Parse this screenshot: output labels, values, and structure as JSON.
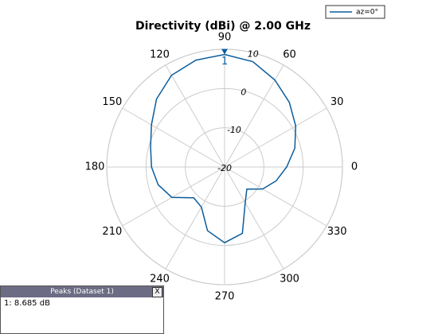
{
  "chart_data": {
    "type": "polar",
    "title": "Directivity (dBi) @ 2.00 GHz",
    "theta": [
      0,
      15,
      30,
      45,
      60,
      75,
      90,
      105,
      120,
      135,
      150,
      165,
      180,
      195,
      210,
      225,
      240,
      255,
      270,
      285,
      300,
      315,
      330,
      345
    ],
    "series": [
      {
        "name": "az=0°",
        "color": "#0a5c9c",
        "values": [
          -4.2,
          -1.5,
          0.9,
          3.3,
          5.6,
          7.8,
          8.685,
          8.2,
          7.0,
          4.5,
          1.5,
          -0.5,
          -1.4,
          -2.5,
          -4.5,
          -8.9,
          -8.2,
          -3.2,
          -0.7,
          -2.5,
          -9.5,
          -12,
          -8.8,
          -6.4
        ]
      }
    ],
    "rlim": [
      -20,
      10
    ],
    "rticks": [
      -20,
      -10,
      0,
      10
    ],
    "thetaticks": [
      0,
      30,
      60,
      90,
      120,
      150,
      180,
      210,
      240,
      270,
      300,
      330
    ],
    "grid": true,
    "legend": "top-right",
    "markers": [
      {
        "label": "1",
        "theta": 90,
        "value": 8.685
      }
    ]
  },
  "peak_table": {
    "title": "Peaks (Dataset 1)",
    "close": "X",
    "rows": [
      "1: 8.685 dB"
    ]
  }
}
